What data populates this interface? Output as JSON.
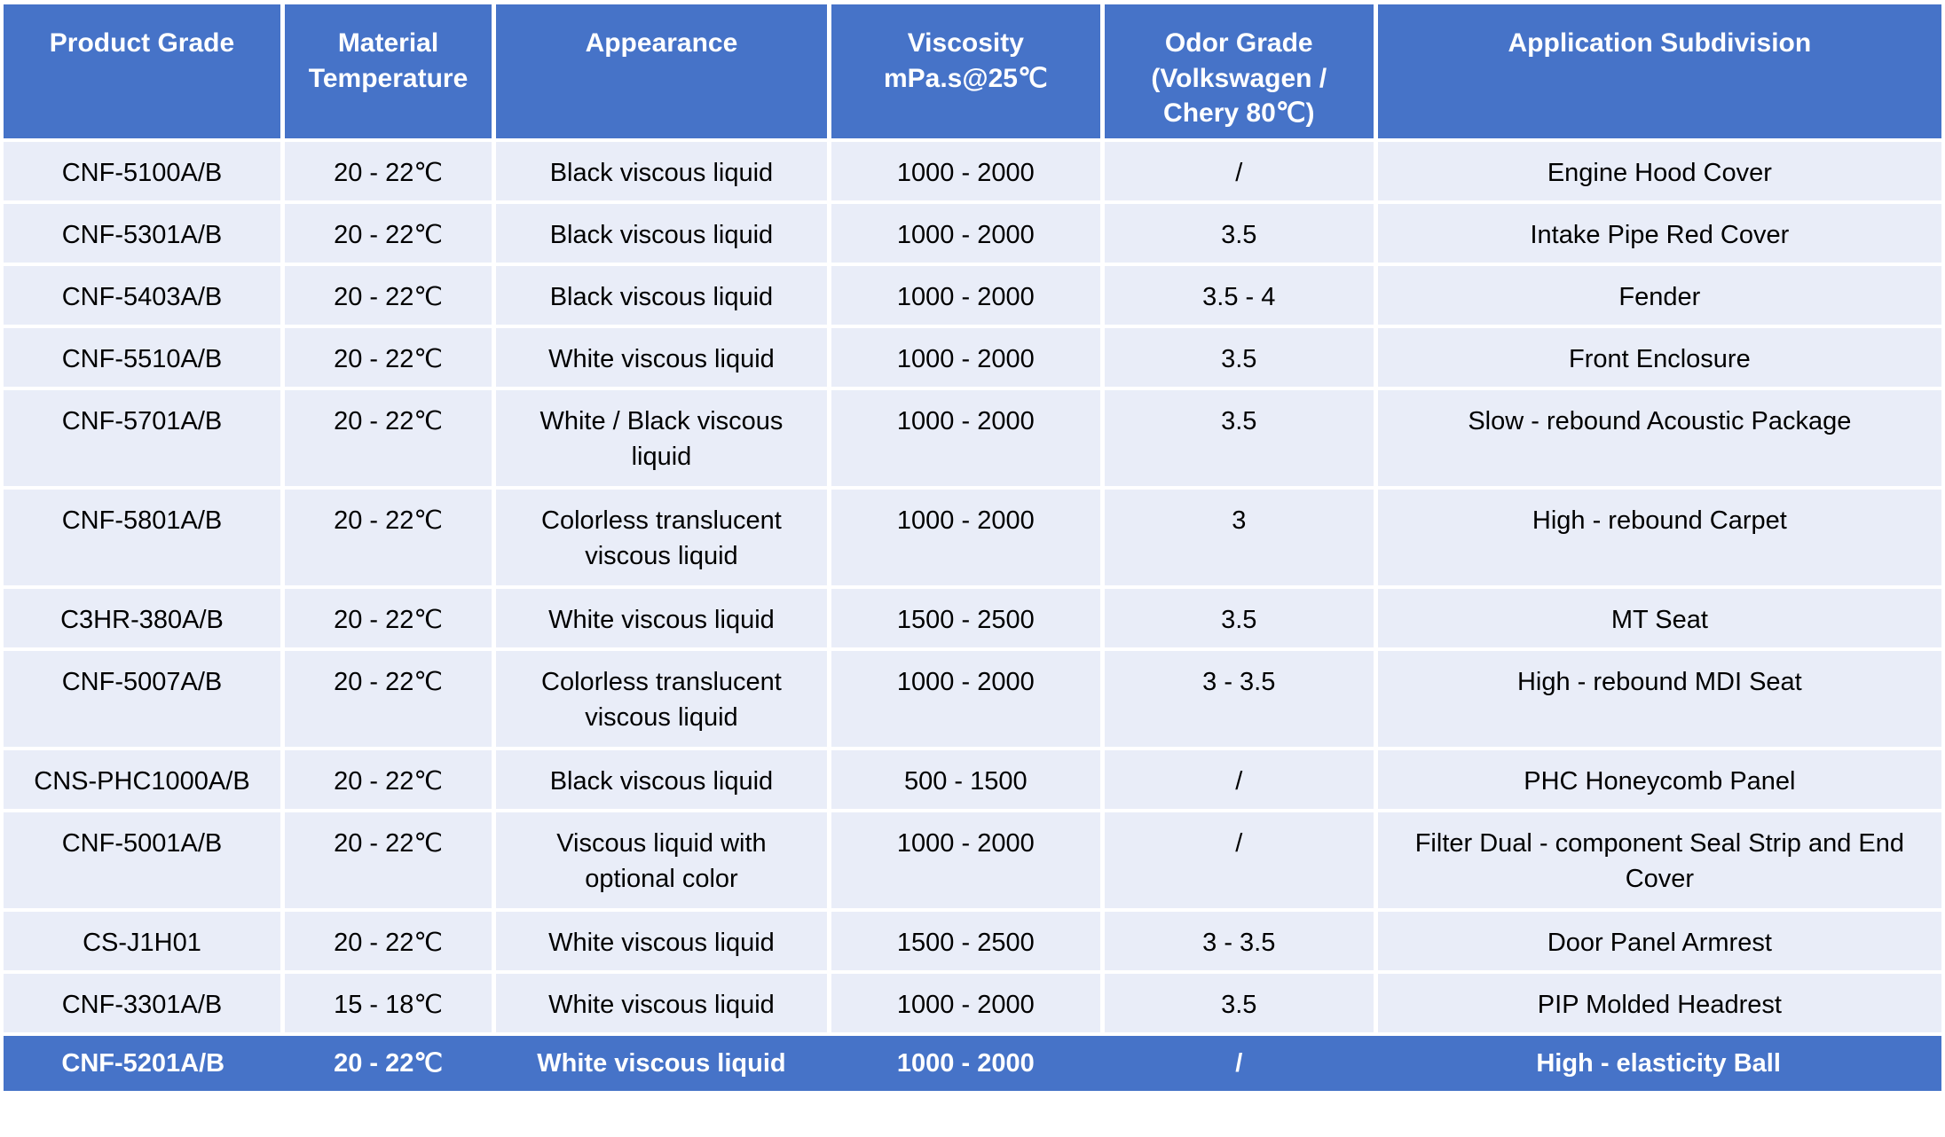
{
  "colors": {
    "header_bg": "#4673C8",
    "header_text": "#FFFFFF",
    "row_bg": "#E9EDF8",
    "body_text": "#000000",
    "highlight_bg": "#4673C8",
    "highlight_text": "#FFFFFF"
  },
  "table": {
    "columns": [
      {
        "key": "grade",
        "label": "Product Grade"
      },
      {
        "key": "temp",
        "label": "Material\nTemperature"
      },
      {
        "key": "appearance",
        "label": "Appearance"
      },
      {
        "key": "viscosity",
        "label": "Viscosity\nmPa.s@25℃"
      },
      {
        "key": "odor",
        "label": "Odor Grade\n(Volkswagen /\nChery 80℃)"
      },
      {
        "key": "application",
        "label": "Application Subdivision"
      }
    ],
    "rows": [
      {
        "grade": "CNF-5100A/B",
        "temp": "20 - 22℃",
        "appearance": "Black viscous liquid",
        "viscosity": "1000 - 2000",
        "odor": "/",
        "application": "Engine Hood Cover",
        "highlight": false
      },
      {
        "grade": "CNF-5301A/B",
        "temp": "20 - 22℃",
        "appearance": "Black viscous liquid",
        "viscosity": "1000 - 2000",
        "odor": "3.5",
        "application": "Intake Pipe Red Cover",
        "highlight": false
      },
      {
        "grade": "CNF-5403A/B",
        "temp": "20 - 22℃",
        "appearance": "Black viscous liquid",
        "viscosity": "1000 - 2000",
        "odor": "3.5 - 4",
        "application": "Fender",
        "highlight": false
      },
      {
        "grade": "CNF-5510A/B",
        "temp": "20 - 22℃",
        "appearance": "White viscous liquid",
        "viscosity": "1000 - 2000",
        "odor": "3.5",
        "application": "Front Enclosure",
        "highlight": false
      },
      {
        "grade": "CNF-5701A/B",
        "temp": "20 - 22℃",
        "appearance": "White / Black viscous liquid",
        "viscosity": "1000 - 2000",
        "odor": "3.5",
        "application": "Slow - rebound Acoustic Package",
        "highlight": false
      },
      {
        "grade": "CNF-5801A/B",
        "temp": "20 - 22℃",
        "appearance": "Colorless translucent viscous liquid",
        "viscosity": "1000 - 2000",
        "odor": "3",
        "application": "High - rebound Carpet",
        "highlight": false
      },
      {
        "grade": "C3HR-380A/B",
        "temp": "20 - 22℃",
        "appearance": "White viscous liquid",
        "viscosity": "1500 - 2500",
        "odor": "3.5",
        "application": "MT Seat",
        "highlight": false
      },
      {
        "grade": "CNF-5007A/B",
        "temp": "20 - 22℃",
        "appearance": "Colorless translucent viscous liquid",
        "viscosity": "1000 - 2000",
        "odor": "3 - 3.5",
        "application": "High - rebound MDI Seat",
        "highlight": false
      },
      {
        "grade": "CNS-PHC1000A/B",
        "temp": "20 - 22℃",
        "appearance": "Black viscous liquid",
        "viscosity": "500 - 1500",
        "odor": "/",
        "application": "PHC Honeycomb Panel",
        "highlight": false
      },
      {
        "grade": "CNF-5001A/B",
        "temp": "20 - 22℃",
        "appearance": "Viscous liquid with optional color",
        "viscosity": "1000 - 2000",
        "odor": "/",
        "application": "Filter Dual - component Seal Strip and End Cover",
        "highlight": false
      },
      {
        "grade": "CS-J1H01",
        "temp": "20 - 22℃",
        "appearance": "White viscous liquid",
        "viscosity": "1500 - 2500",
        "odor": "3 - 3.5",
        "application": "Door Panel Armrest",
        "highlight": false
      },
      {
        "grade": "CNF-3301A/B",
        "temp": "15 - 18℃",
        "appearance": "White viscous liquid",
        "viscosity": "1000 - 2000",
        "odor": "3.5",
        "application": "PIP Molded Headrest",
        "highlight": false
      },
      {
        "grade": "CNF-5201A/B",
        "temp": "20 - 22℃",
        "appearance": "White viscous liquid",
        "viscosity": "1000 - 2000",
        "odor": "/",
        "application": "High - elasticity Ball",
        "highlight": true
      }
    ]
  }
}
